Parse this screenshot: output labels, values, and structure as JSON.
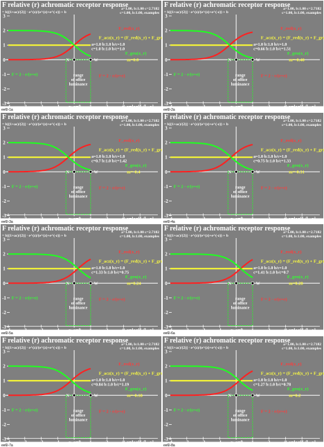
{
  "colors": {
    "background": "#7f7f7f",
    "red": "#ff2020",
    "yellow": "#ffff30",
    "green": "#20ff20",
    "white": "#ffffff"
  },
  "common": {
    "title": "relative (r) achromatic receptor response",
    "formula_main": "= b[(1+ac)/(2)] · e^(z)/(e^(z)+e^(-z)) + b",
    "formula_scale": "a=1.00, b:1.00 c=2.7182",
    "formula_params": "c=1.00, b:1.00, examples",
    "legend_red": "F_red(x_r)",
    "legend_yellow": "F_acz(x_r) = (F_red(x_r) + F_grn(x_r)) / 2",
    "legend_green": "F_grn(x_r)",
    "mid_label": "N",
    "white_label": "W",
    "range_label": [
      "range",
      "of office",
      "luminance"
    ],
    "xlabel": "x_r=log[L/L_r]",
    "x0_label": "x_r=0",
    "yticks": [
      "3",
      "2",
      "1",
      "0",
      "-1",
      "-2",
      "-3"
    ],
    "xticks": [
      "-4",
      "-3",
      "-2",
      "-1",
      "0",
      "1",
      "2",
      "3",
      "4"
    ]
  },
  "chart_data": [
    {
      "id": "ee6l-1a",
      "type": "line",
      "params": [
        "a=1.0 b:1.0 b/c=1.0",
        "c=1.0 b:1.0 b/c=1.0"
      ],
      "value": "m=0.0",
      "shift": 0.0,
      "ylim": [
        -3,
        3
      ],
      "xlim": [
        -4,
        5
      ]
    },
    {
      "id": "ee6l-2a",
      "type": "line",
      "params": [
        "a=1.0 b:1.0 b/c=1.0",
        "c=0.66 b:1.0 b/c=1.51"
      ],
      "value": "m=-0.40",
      "shift": -0.4,
      "ylim": [
        -3,
        3
      ],
      "xlim": [
        -4,
        5
      ]
    },
    {
      "id": "ee6l-3a",
      "type": "line",
      "params": [
        "a=1.0 b:1.0 b/c=1.0",
        "c=0.7 b:1.0 b/c=1.42"
      ],
      "value": "m=-0.4",
      "shift": -0.35,
      "ylim": [
        -3,
        3
      ],
      "xlim": [
        -4,
        5
      ]
    },
    {
      "id": "ee6l-4a",
      "type": "line",
      "params": [
        "a=1.0 b:1.0 b/c=1.0",
        "c=0.75 b:1.0 b/c=1.33"
      ],
      "value": "m=-0.31",
      "shift": -0.31,
      "ylim": [
        -3,
        3
      ],
      "xlim": [
        -4,
        5
      ]
    },
    {
      "id": "ee6l-5a",
      "type": "line",
      "params": [
        "a=1.0 b:1.0 b/c=1.0",
        "c=1.33 b:1.0 b/c=0.75"
      ],
      "value": "m=0.24",
      "shift": 0.24,
      "ylim": [
        -3,
        3
      ],
      "xlim": [
        -4,
        5
      ]
    },
    {
      "id": "ee6l-6a",
      "type": "line",
      "params": [
        "a=1.0 b:1.0 b/c=1.0",
        "c=1.41 b:1.0 b/c=0.7"
      ],
      "value": "m=0.28",
      "shift": 0.28,
      "ylim": [
        -3,
        3
      ],
      "xlim": [
        -4,
        5
      ]
    },
    {
      "id": "ee6l-7a",
      "type": "line",
      "params": [
        "a=1.0 b:1.0 b/c=1.0",
        "c=0.84 b:1.0 b/c=1.19"
      ],
      "value": "m=-0.18",
      "shift": -0.18,
      "ylim": [
        -3,
        3
      ],
      "xlim": [
        -4,
        5
      ]
    },
    {
      "id": "ee6l-8a",
      "type": "line",
      "params": [
        "a=1.0 b:1.0 b/c=1.0",
        "c=1.27 b:1.0 b/c=0.78"
      ],
      "value": "m=0.2",
      "shift": 0.2,
      "ylim": [
        -3,
        3
      ],
      "xlim": [
        -4,
        5
      ]
    }
  ]
}
